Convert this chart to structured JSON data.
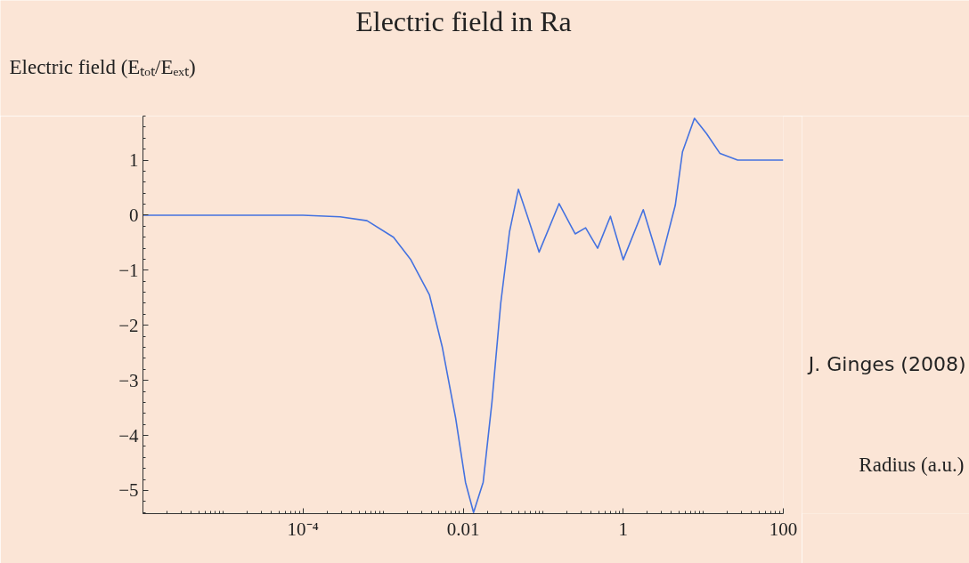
{
  "chart_data": {
    "type": "line",
    "title": "Electric field in Ra",
    "ylabel": "Electric field (Eₜₒₜ/Eₑₓₜ)",
    "xlabel": "Radius (a.u.)",
    "annotations": [
      "J. Ginges (2008)"
    ],
    "log": "x",
    "grid": false,
    "marker": "none",
    "line_style": "solid",
    "xlim": [
      1e-06,
      100
    ],
    "ylim": [
      -5.42,
      1.8
    ],
    "xticks": [
      {
        "value": 0.0001,
        "label": "10⁻⁴"
      },
      0.01,
      1,
      100
    ],
    "yticks": [
      {
        "value": -5,
        "label": "−5"
      },
      {
        "value": -4,
        "label": "−4"
      },
      {
        "value": -3,
        "label": "−3"
      },
      {
        "value": -2,
        "label": "−2"
      },
      {
        "value": -1,
        "label": "−1"
      },
      0,
      1
    ],
    "series": [
      {
        "color": "#4472e0",
        "x": [
          1e-06,
          3.6e-05,
          0.0001,
          0.00029,
          0.00063,
          0.00135,
          0.0022,
          0.0038,
          0.0055,
          0.0081,
          0.0107,
          0.0135,
          0.0178,
          0.0229,
          0.0295,
          0.038,
          0.049,
          0.063,
          0.089,
          0.158,
          0.251,
          0.339,
          0.479,
          0.692,
          1.0,
          1.78,
          2.88,
          4.47,
          5.5,
          7.76,
          11.0,
          16.2,
          26.9,
          100
        ],
        "values": [
          0,
          0,
          0,
          -0.03,
          -0.1,
          -0.4,
          -0.8,
          -1.45,
          -2.4,
          -3.7,
          -4.85,
          -5.4,
          -4.85,
          -3.4,
          -1.6,
          -0.3,
          0.47,
          0,
          -0.67,
          0.21,
          -0.34,
          -0.23,
          -0.6,
          -0.02,
          -0.81,
          0.1,
          -0.9,
          0.18,
          1.15,
          1.76,
          1.48,
          1.12,
          1.0,
          1.0
        ]
      }
    ]
  }
}
